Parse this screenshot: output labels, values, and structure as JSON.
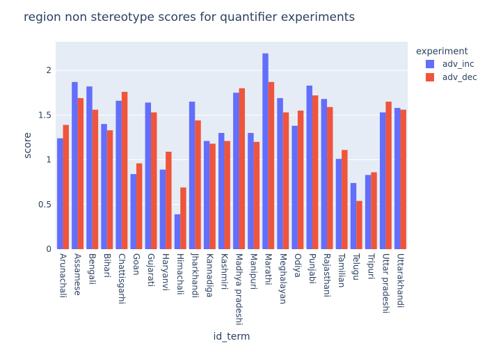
{
  "chart_data": {
    "type": "bar",
    "title": "region non stereotype scores for quantifier experiments",
    "xlabel": "id_term",
    "ylabel": "score",
    "ylim": [
      0,
      2.32
    ],
    "yticks": [
      0,
      0.5,
      1,
      1.5,
      2
    ],
    "ytick_labels": [
      "0",
      "0.5",
      "1",
      "1.5",
      "2"
    ],
    "grid": true,
    "legend_title": "experiment",
    "legend_placement": "top-right",
    "categories": [
      "Arunachali",
      "Assamese",
      "Bengali",
      "Bihari",
      "Chattisgarhi",
      "Goan",
      "Gujarati",
      "Haryanvi",
      "Himachali",
      "Jharkhandi",
      "Kannadiga",
      "Kashmiri",
      "Madhya pradeshi",
      "Manipuri",
      "Marathi",
      "Meghalayan",
      "Odiya",
      "Punjabi",
      "Rajasthani",
      "Tamilian",
      "Telugu",
      "Tripuri",
      "Uttar pradeshi",
      "Uttarakhandi"
    ],
    "series": [
      {
        "name": "adv_inc",
        "color": "#636efa",
        "values": [
          1.24,
          1.87,
          1.82,
          1.4,
          1.66,
          0.84,
          1.64,
          0.89,
          0.39,
          1.65,
          1.21,
          1.3,
          1.75,
          1.3,
          2.19,
          1.69,
          1.38,
          1.83,
          1.68,
          1.01,
          0.74,
          0.83,
          1.53,
          1.58
        ]
      },
      {
        "name": "adv_dec",
        "color": "#ef553b",
        "values": [
          1.39,
          1.69,
          1.56,
          1.33,
          1.76,
          0.96,
          1.53,
          1.09,
          0.69,
          1.44,
          1.18,
          1.21,
          1.8,
          1.2,
          1.87,
          1.53,
          1.55,
          1.72,
          1.59,
          1.11,
          0.54,
          0.86,
          1.65,
          1.56
        ]
      }
    ]
  }
}
